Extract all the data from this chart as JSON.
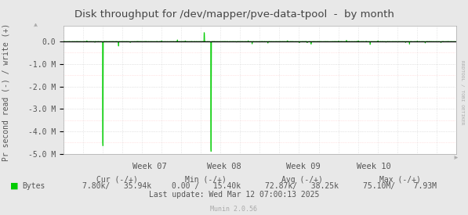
{
  "title": "Disk throughput for /dev/mapper/pve-data-tpool  -  by month",
  "ylabel": "Pr second read (-) / write (+)",
  "bg_color": "#e8e8e8",
  "plot_bg_color": "#ffffff",
  "grid_major_color": "#cccccc",
  "grid_minor_h_color": "#ffcccc",
  "grid_minor_v_color": "#cccccc",
  "line_color": "#00cc00",
  "title_color": "#444444",
  "text_color": "#555555",
  "axis_color": "#aaaaaa",
  "rrdtool_color": "#aaaaaa",
  "ylim": [
    -5000000,
    700000
  ],
  "yticks": [
    0,
    -1000000,
    -2000000,
    -3000000,
    -4000000,
    -5000000
  ],
  "ytick_labels": [
    "0.0",
    "-1.0 M",
    "-2.0 M",
    "-3.0 M",
    "-4.0 M",
    "-5.0 M"
  ],
  "week_labels": [
    "Week 07",
    "Week 08",
    "Week 09",
    "Week 10"
  ],
  "munin_text": "Munin 2.0.56",
  "rrdtool_text": "RRDTOOL / TOBI OETIKER"
}
